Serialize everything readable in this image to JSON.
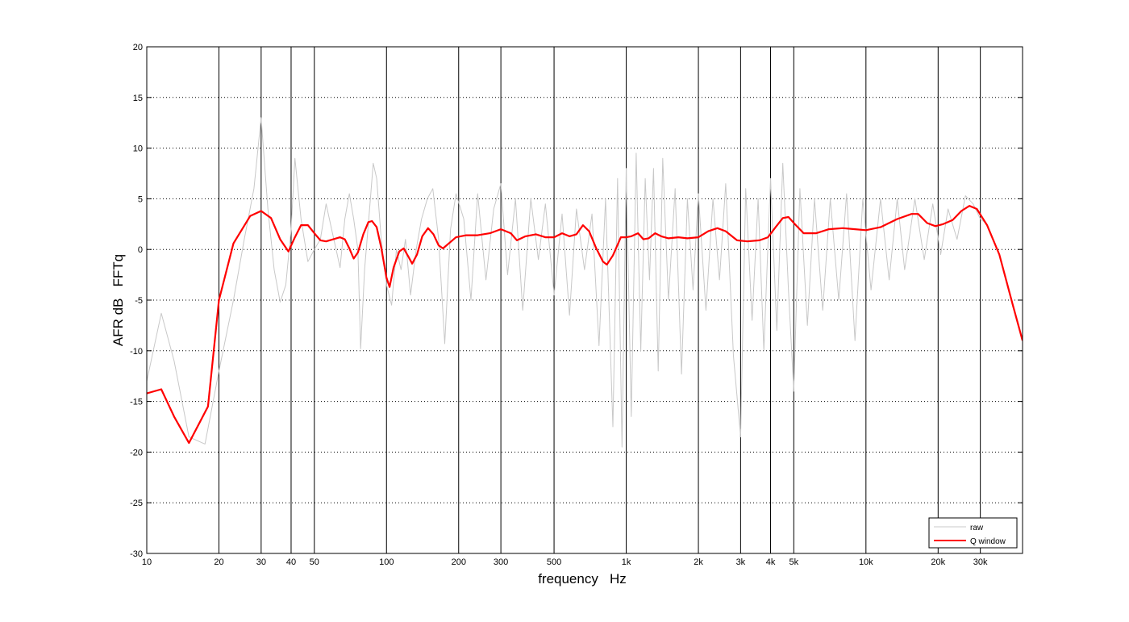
{
  "chart_data": {
    "type": "line",
    "title": "",
    "xlabel": "frequency   Hz",
    "ylabel": "AFR dB   FFTq",
    "xscale": "log",
    "xlim": [
      10,
      45000
    ],
    "ylim": [
      -30,
      20
    ],
    "grid": "dotted horizontal at y ticks; solid vertical at labelled frequencies",
    "legend_position": "bottom-right",
    "x_tick_labels": [
      {
        "value": 10,
        "label": "10"
      },
      {
        "value": 20,
        "label": "20"
      },
      {
        "value": 30,
        "label": "30"
      },
      {
        "value": 40,
        "label": "40"
      },
      {
        "value": 50,
        "label": "50"
      },
      {
        "value": 100,
        "label": "100"
      },
      {
        "value": 200,
        "label": "200"
      },
      {
        "value": 300,
        "label": "300"
      },
      {
        "value": 500,
        "label": "500"
      },
      {
        "value": 1000,
        "label": "1k"
      },
      {
        "value": 2000,
        "label": "2k"
      },
      {
        "value": 3000,
        "label": "3k"
      },
      {
        "value": 4000,
        "label": "4k"
      },
      {
        "value": 5000,
        "label": "5k"
      },
      {
        "value": 10000,
        "label": "10k"
      },
      {
        "value": 20000,
        "label": "20k"
      },
      {
        "value": 30000,
        "label": "30k"
      }
    ],
    "y_ticks": [
      20,
      15,
      10,
      5,
      0,
      -5,
      -10,
      -15,
      -20,
      -25,
      -30
    ],
    "series": [
      {
        "name": "raw",
        "color": "#c8c8c8",
        "points": [
          [
            10,
            -13
          ],
          [
            11.5,
            -6.3
          ],
          [
            13,
            -11
          ],
          [
            15,
            -18.5
          ],
          [
            17.5,
            -19.2
          ],
          [
            20,
            -12
          ],
          [
            23,
            -5
          ],
          [
            25.5,
            1
          ],
          [
            28,
            6
          ],
          [
            30,
            13
          ],
          [
            32,
            4
          ],
          [
            34,
            -2
          ],
          [
            36,
            -5.2
          ],
          [
            38,
            -3.5
          ],
          [
            40,
            2
          ],
          [
            41.5,
            9
          ],
          [
            44,
            3
          ],
          [
            47,
            -1.2
          ],
          [
            50,
            0
          ],
          [
            53,
            1
          ],
          [
            56,
            4.5
          ],
          [
            59,
            2
          ],
          [
            62,
            -0.3
          ],
          [
            64,
            -1.8
          ],
          [
            67,
            3
          ],
          [
            70,
            5.5
          ],
          [
            73,
            3
          ],
          [
            76,
            0
          ],
          [
            78,
            -9.8
          ],
          [
            81,
            -2
          ],
          [
            85,
            4
          ],
          [
            88,
            8.5
          ],
          [
            91,
            7
          ],
          [
            95,
            1
          ],
          [
            100,
            -3.5
          ],
          [
            105,
            -5.5
          ],
          [
            110,
            0
          ],
          [
            115,
            -2
          ],
          [
            120,
            1
          ],
          [
            126,
            -4.5
          ],
          [
            133,
            0
          ],
          [
            140,
            3
          ],
          [
            148,
            5
          ],
          [
            156,
            6
          ],
          [
            165,
            1
          ],
          [
            175,
            -9.3
          ],
          [
            185,
            2
          ],
          [
            195,
            5.5
          ],
          [
            210,
            3
          ],
          [
            225,
            -5
          ],
          [
            240,
            5.5
          ],
          [
            260,
            -3
          ],
          [
            280,
            4
          ],
          [
            300,
            6.5
          ],
          [
            320,
            -2.5
          ],
          [
            345,
            5
          ],
          [
            370,
            -6
          ],
          [
            400,
            5
          ],
          [
            430,
            -1
          ],
          [
            460,
            4.5
          ],
          [
            500,
            -4.5
          ],
          [
            540,
            3.5
          ],
          [
            580,
            -6.5
          ],
          [
            620,
            4
          ],
          [
            670,
            -2
          ],
          [
            720,
            3.5
          ],
          [
            770,
            -9.5
          ],
          [
            820,
            5
          ],
          [
            880,
            -17.5
          ],
          [
            920,
            7
          ],
          [
            960,
            -19.5
          ],
          [
            1000,
            8
          ],
          [
            1050,
            -16.5
          ],
          [
            1100,
            9.5
          ],
          [
            1150,
            -10
          ],
          [
            1200,
            7
          ],
          [
            1250,
            -3
          ],
          [
            1300,
            8
          ],
          [
            1360,
            -12
          ],
          [
            1420,
            9
          ],
          [
            1500,
            -5
          ],
          [
            1600,
            6
          ],
          [
            1700,
            -12.3
          ],
          [
            1800,
            5
          ],
          [
            1900,
            -4
          ],
          [
            2000,
            5.5
          ],
          [
            2150,
            -6
          ],
          [
            2300,
            5
          ],
          [
            2450,
            -3
          ],
          [
            2600,
            6.5
          ],
          [
            2800,
            -10.5
          ],
          [
            3000,
            -18.5
          ],
          [
            3150,
            6
          ],
          [
            3350,
            -7
          ],
          [
            3550,
            5
          ],
          [
            3750,
            -10
          ],
          [
            4000,
            7
          ],
          [
            4250,
            -8
          ],
          [
            4500,
            8.5
          ],
          [
            4750,
            -4
          ],
          [
            5000,
            -14
          ],
          [
            5300,
            6
          ],
          [
            5700,
            -7.5
          ],
          [
            6100,
            5
          ],
          [
            6600,
            -6
          ],
          [
            7100,
            5
          ],
          [
            7700,
            -5
          ],
          [
            8300,
            5.5
          ],
          [
            9000,
            -9
          ],
          [
            9700,
            5
          ],
          [
            10500,
            -4
          ],
          [
            11500,
            5
          ],
          [
            12500,
            -3
          ],
          [
            13500,
            5
          ],
          [
            14500,
            -2
          ],
          [
            16000,
            5
          ],
          [
            17500,
            -1
          ],
          [
            19000,
            4.5
          ],
          [
            20500,
            -0.5
          ],
          [
            22000,
            4
          ],
          [
            24000,
            1
          ],
          [
            26000,
            5.3
          ],
          [
            28000,
            4.5
          ],
          [
            30000,
            3
          ],
          [
            32000,
            2.5
          ]
        ]
      },
      {
        "name": "Q window",
        "color": "#ff0000",
        "points": [
          [
            10,
            -14.2
          ],
          [
            11.5,
            -13.8
          ],
          [
            13,
            -16.5
          ],
          [
            15,
            -19.1
          ],
          [
            18,
            -15.5
          ],
          [
            20,
            -5
          ],
          [
            23,
            0.6
          ],
          [
            27,
            3.3
          ],
          [
            30,
            3.8
          ],
          [
            33,
            3.1
          ],
          [
            36,
            1
          ],
          [
            39,
            -0.2
          ],
          [
            41.5,
            1.2
          ],
          [
            44,
            2.4
          ],
          [
            47,
            2.4
          ],
          [
            50,
            1.6
          ],
          [
            53,
            0.9
          ],
          [
            56,
            0.8
          ],
          [
            60,
            1
          ],
          [
            64,
            1.2
          ],
          [
            67,
            1
          ],
          [
            70,
            0.1
          ],
          [
            73,
            -0.9
          ],
          [
            76,
            -0.3
          ],
          [
            80,
            1.5
          ],
          [
            84,
            2.7
          ],
          [
            87,
            2.8
          ],
          [
            91,
            2.2
          ],
          [
            95,
            0.2
          ],
          [
            100,
            -2.8
          ],
          [
            103,
            -3.7
          ],
          [
            107,
            -1.8
          ],
          [
            113,
            -0.2
          ],
          [
            118,
            0.1
          ],
          [
            124,
            -0.8
          ],
          [
            128,
            -1.4
          ],
          [
            134,
            -0.5
          ],
          [
            141,
            1.3
          ],
          [
            149,
            2.1
          ],
          [
            157,
            1.5
          ],
          [
            165,
            0.4
          ],
          [
            172,
            0.1
          ],
          [
            182,
            0.6
          ],
          [
            195,
            1.2
          ],
          [
            215,
            1.4
          ],
          [
            240,
            1.4
          ],
          [
            270,
            1.6
          ],
          [
            300,
            2
          ],
          [
            330,
            1.6
          ],
          [
            350,
            0.9
          ],
          [
            380,
            1.3
          ],
          [
            420,
            1.5
          ],
          [
            460,
            1.2
          ],
          [
            500,
            1.2
          ],
          [
            540,
            1.6
          ],
          [
            580,
            1.3
          ],
          [
            620,
            1.5
          ],
          [
            660,
            2.4
          ],
          [
            700,
            1.8
          ],
          [
            750,
            0.1
          ],
          [
            800,
            -1.2
          ],
          [
            830,
            -1.5
          ],
          [
            880,
            -0.6
          ],
          [
            950,
            1.2
          ],
          [
            1000,
            1.2
          ],
          [
            1050,
            1.3
          ],
          [
            1120,
            1.6
          ],
          [
            1180,
            1
          ],
          [
            1240,
            1.1
          ],
          [
            1320,
            1.6
          ],
          [
            1400,
            1.3
          ],
          [
            1500,
            1.1
          ],
          [
            1650,
            1.2
          ],
          [
            1800,
            1.1
          ],
          [
            2000,
            1.2
          ],
          [
            2200,
            1.8
          ],
          [
            2400,
            2.1
          ],
          [
            2600,
            1.8
          ],
          [
            2900,
            0.9
          ],
          [
            3200,
            0.8
          ],
          [
            3600,
            0.9
          ],
          [
            3900,
            1.2
          ],
          [
            4200,
            2.2
          ],
          [
            4500,
            3.1
          ],
          [
            4750,
            3.2
          ],
          [
            5100,
            2.4
          ],
          [
            5500,
            1.6
          ],
          [
            6200,
            1.6
          ],
          [
            7000,
            2
          ],
          [
            8000,
            2.1
          ],
          [
            9000,
            2
          ],
          [
            10000,
            1.9
          ],
          [
            11500,
            2.2
          ],
          [
            13500,
            3
          ],
          [
            15500,
            3.5
          ],
          [
            16500,
            3.5
          ],
          [
            18000,
            2.6
          ],
          [
            19500,
            2.3
          ],
          [
            21000,
            2.5
          ],
          [
            23000,
            2.9
          ],
          [
            25000,
            3.8
          ],
          [
            27000,
            4.3
          ],
          [
            29000,
            4
          ],
          [
            32000,
            2.4
          ],
          [
            36000,
            -0.5
          ],
          [
            41000,
            -5.5
          ],
          [
            45000,
            -9
          ]
        ]
      }
    ]
  }
}
